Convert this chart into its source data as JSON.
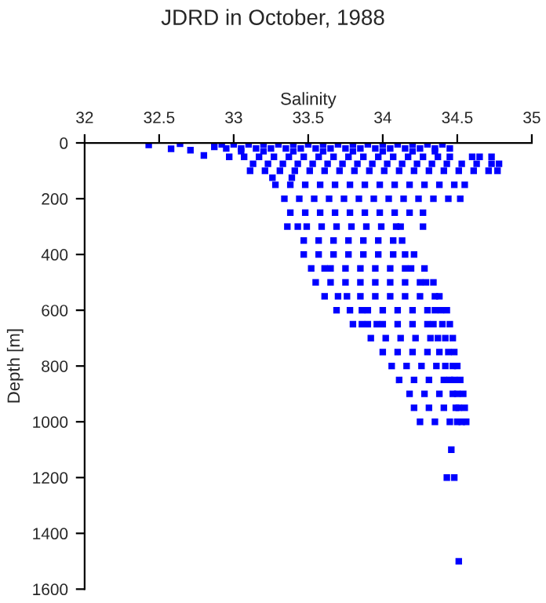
{
  "chart_data": {
    "type": "scatter",
    "title": "JDRD in October, 1988",
    "xlabel": "Salinity",
    "ylabel": "Depth [m]",
    "xlim": [
      32,
      35
    ],
    "xticks": [
      32,
      32.5,
      33,
      33.5,
      34,
      34.5,
      35
    ],
    "ylim": [
      1600,
      0
    ],
    "yticks": [
      0,
      200,
      400,
      600,
      800,
      1000,
      1200,
      1400,
      1600
    ],
    "marker": "square",
    "grid": false,
    "series": [
      {
        "color": "#0000ff",
        "x": [
          32.43,
          32.58,
          32.64,
          32.71,
          32.8,
          32.87,
          32.92,
          33.0,
          33.1,
          33.2,
          33.3,
          33.4,
          33.5,
          33.6,
          33.7,
          33.8,
          33.9,
          34.0,
          34.1,
          34.2,
          34.3,
          34.4,
          32.95,
          33.05,
          33.15,
          33.25,
          33.35,
          33.45,
          33.55,
          33.65,
          33.75,
          33.85,
          33.95,
          34.05,
          34.15,
          34.25,
          34.35,
          34.45,
          33.05,
          33.2,
          33.4,
          33.6,
          33.8,
          34.0,
          34.2,
          34.35,
          32.97,
          33.07,
          33.17,
          33.27,
          33.37,
          33.47,
          33.57,
          33.67,
          33.77,
          33.87,
          33.97,
          34.07,
          34.17,
          34.27,
          34.37,
          34.45,
          34.6,
          34.65,
          34.73,
          33.13,
          33.23,
          33.33,
          33.43,
          33.53,
          33.63,
          33.73,
          33.83,
          33.93,
          34.03,
          34.13,
          34.23,
          34.33,
          34.43,
          34.53,
          34.63,
          34.73,
          34.78,
          33.11,
          33.21,
          33.31,
          33.41,
          33.51,
          33.61,
          33.71,
          33.81,
          33.91,
          34.01,
          34.11,
          34.21,
          34.31,
          34.41,
          34.51,
          34.61,
          34.71,
          34.77,
          33.26,
          33.39,
          33.28,
          33.38,
          33.48,
          33.58,
          33.68,
          33.78,
          33.88,
          33.98,
          34.08,
          34.18,
          34.28,
          34.38,
          34.48,
          34.55,
          33.34,
          33.44,
          33.54,
          33.64,
          33.74,
          33.84,
          33.94,
          34.04,
          34.14,
          34.24,
          34.34,
          34.44,
          34.52,
          33.38,
          33.48,
          33.58,
          33.68,
          33.78,
          33.88,
          33.98,
          34.08,
          34.18,
          34.27,
          33.36,
          33.43,
          33.49,
          33.59,
          33.69,
          33.79,
          33.89,
          33.99,
          34.09,
          34.12,
          34.27,
          33.47,
          33.57,
          33.67,
          33.77,
          33.87,
          33.97,
          34.07,
          34.13,
          33.47,
          33.57,
          33.67,
          33.77,
          33.87,
          33.97,
          34.07,
          34.15,
          34.21,
          33.52,
          33.61,
          33.65,
          33.75,
          33.85,
          33.95,
          34.05,
          34.15,
          34.19,
          34.28,
          33.55,
          33.65,
          33.75,
          33.85,
          33.95,
          34.05,
          34.15,
          34.25,
          34.29,
          34.34,
          33.61,
          33.7,
          33.76,
          33.85,
          33.95,
          34.05,
          34.15,
          34.25,
          34.35,
          34.38,
          33.69,
          33.78,
          33.86,
          33.9,
          34.0,
          34.1,
          34.2,
          34.3,
          34.35,
          34.39,
          34.43,
          33.8,
          33.86,
          33.9,
          33.96,
          34.0,
          34.1,
          34.2,
          34.3,
          34.34,
          34.4,
          34.45,
          33.92,
          34.02,
          34.12,
          34.22,
          34.32,
          34.37,
          34.42,
          34.47,
          34.0,
          34.1,
          34.2,
          34.3,
          34.38,
          34.44,
          34.48,
          34.06,
          34.16,
          34.26,
          34.36,
          34.42,
          34.47,
          34.5,
          34.11,
          34.21,
          34.31,
          34.41,
          34.45,
          34.48,
          34.52,
          34.18,
          34.28,
          34.38,
          34.47,
          34.5,
          34.54,
          34.21,
          34.31,
          34.41,
          34.49,
          34.51,
          34.55,
          34.25,
          34.35,
          34.45,
          34.5,
          34.53,
          34.56,
          34.46,
          34.43,
          34.48,
          34.51
        ],
        "values": [
          7,
          21,
          3,
          26,
          45,
          14,
          5,
          5,
          5,
          5,
          5,
          5,
          5,
          5,
          5,
          5,
          5,
          5,
          5,
          5,
          5,
          5,
          20,
          20,
          20,
          20,
          20,
          20,
          20,
          20,
          20,
          20,
          20,
          20,
          20,
          20,
          20,
          20,
          30,
          30,
          30,
          30,
          30,
          30,
          30,
          30,
          50,
          50,
          50,
          50,
          50,
          50,
          50,
          50,
          50,
          50,
          50,
          50,
          50,
          50,
          50,
          50,
          50,
          50,
          50,
          75,
          75,
          75,
          75,
          75,
          75,
          75,
          75,
          75,
          75,
          75,
          75,
          75,
          75,
          75,
          75,
          75,
          75,
          100,
          100,
          100,
          100,
          100,
          100,
          100,
          100,
          100,
          100,
          100,
          100,
          100,
          100,
          100,
          100,
          100,
          100,
          125,
          125,
          150,
          150,
          150,
          150,
          150,
          150,
          150,
          150,
          150,
          150,
          150,
          150,
          150,
          150,
          200,
          200,
          200,
          200,
          200,
          200,
          200,
          200,
          200,
          200,
          200,
          200,
          200,
          250,
          250,
          250,
          250,
          250,
          250,
          250,
          250,
          250,
          250,
          300,
          300,
          300,
          300,
          300,
          300,
          300,
          300,
          300,
          300,
          300,
          350,
          350,
          350,
          350,
          350,
          350,
          350,
          350,
          400,
          400,
          400,
          400,
          400,
          400,
          400,
          400,
          400,
          450,
          450,
          450,
          450,
          450,
          450,
          450,
          450,
          450,
          450,
          500,
          500,
          500,
          500,
          500,
          500,
          500,
          500,
          500,
          500,
          550,
          550,
          550,
          550,
          550,
          550,
          550,
          550,
          550,
          550,
          600,
          600,
          600,
          600,
          600,
          600,
          600,
          600,
          600,
          600,
          600,
          650,
          650,
          650,
          650,
          650,
          650,
          650,
          650,
          650,
          650,
          650,
          700,
          700,
          700,
          700,
          700,
          700,
          700,
          700,
          750,
          750,
          750,
          750,
          750,
          750,
          750,
          800,
          800,
          800,
          800,
          800,
          800,
          800,
          850,
          850,
          850,
          850,
          850,
          850,
          850,
          900,
          900,
          900,
          900,
          900,
          900,
          950,
          950,
          950,
          950,
          950,
          950,
          1000,
          1000,
          1000,
          1000,
          1000,
          1000,
          1100,
          1200,
          1200,
          1500
        ]
      }
    ]
  }
}
